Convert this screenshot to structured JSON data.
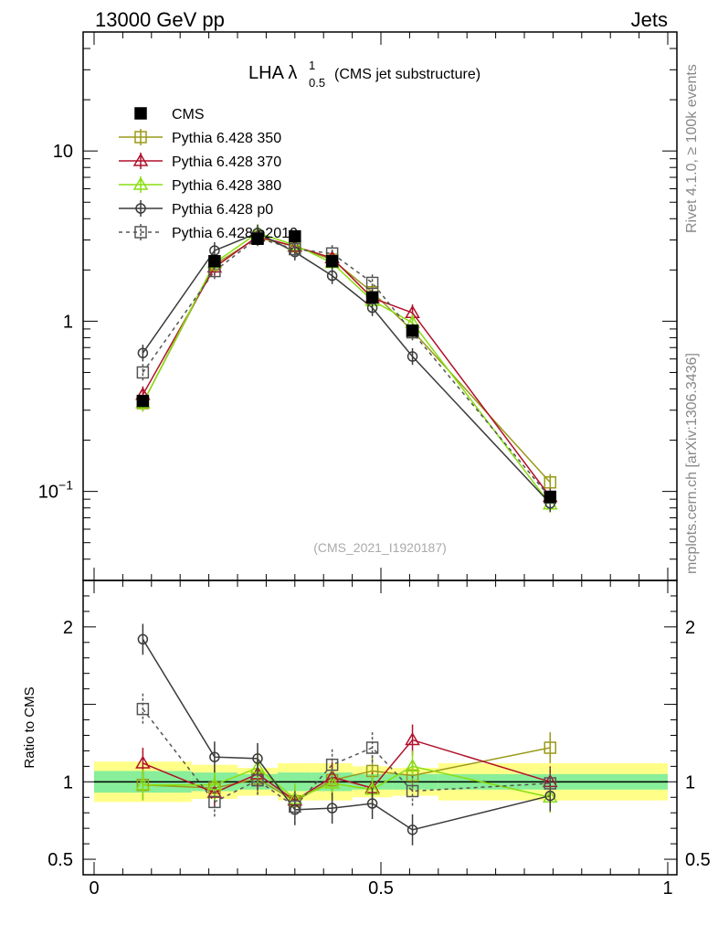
{
  "header": {
    "left": "13000 GeV pp",
    "right": "Jets"
  },
  "side_labels": {
    "rivet": "Rivet 4.1.0, ≥ 100k events",
    "mcplots": "mcplots.cern.ch [arXiv:1306.3436]"
  },
  "watermark": "(CMS_2021_I1920187)",
  "chart_data": {
    "type": "line",
    "title": {
      "main": "LHA λ",
      "sup": "1",
      "sub": "0.5",
      "suffix": "(CMS jet substructure)"
    },
    "ratio_ylabel": "Ratio to CMS",
    "xlim": [
      0,
      1
    ],
    "ylim": [
      0.03,
      50
    ],
    "ylog": true,
    "ratio_ylim": [
      0.4,
      2.3
    ],
    "x_ticks": [
      {
        "v": 0,
        "label": "0"
      },
      {
        "v": 0.5,
        "label": "0.5"
      },
      {
        "v": 1,
        "label": "1"
      }
    ],
    "y_ticks": [
      {
        "v": 0.1,
        "base": "10",
        "exp": "−1"
      },
      {
        "v": 1,
        "base": "1",
        "exp": ""
      },
      {
        "v": 10,
        "base": "10",
        "exp": ""
      }
    ],
    "ratio_ticks": [
      {
        "v": 0.5,
        "label": "0.5"
      },
      {
        "v": 1,
        "label": "1"
      },
      {
        "v": 2,
        "label": "2"
      }
    ],
    "x": [
      0.085,
      0.21,
      0.285,
      0.35,
      0.415,
      0.485,
      0.555,
      0.795
    ],
    "bin_edges": [
      0,
      0.17,
      0.25,
      0.32,
      0.38,
      0.45,
      0.52,
      0.6,
      1.0
    ],
    "band_inner": [
      0.07,
      0.06,
      0.05,
      0.06,
      0.06,
      0.05,
      0.05,
      0.05
    ],
    "band_outer": [
      0.13,
      0.11,
      0.09,
      0.12,
      0.12,
      0.1,
      0.09,
      0.12
    ],
    "cms": {
      "name": "CMS",
      "values": [
        0.34,
        2.25,
        3.05,
        3.15,
        2.25,
        1.38,
        0.88,
        0.093
      ]
    },
    "series": [
      {
        "name": "Pythia 6.428 350",
        "color": "#9a9a1a",
        "marker": "square-open",
        "dash": "",
        "values": [
          0.33,
          2.15,
          3.1,
          2.75,
          2.3,
          1.48,
          0.88,
          0.113
        ],
        "ratio": [
          0.98,
          0.96,
          1.02,
          0.875,
          1.01,
          1.07,
          1.04,
          1.22
        ]
      },
      {
        "name": "Pythia 6.428 370",
        "color": "#b0102a",
        "marker": "triangle-open",
        "dash": "",
        "values": [
          0.37,
          2.07,
          3.15,
          2.75,
          2.35,
          1.37,
          1.12,
          0.093
        ],
        "ratio": [
          1.12,
          0.93,
          1.05,
          0.88,
          1.03,
          0.96,
          1.27,
          1.0
        ]
      },
      {
        "name": "Pythia 6.428 380",
        "color": "#88dd11",
        "marker": "triangle-open",
        "dash": "",
        "values": [
          0.33,
          2.2,
          3.3,
          2.8,
          2.2,
          1.32,
          0.98,
          0.084
        ],
        "ratio": [
          0.98,
          0.98,
          1.09,
          0.89,
          0.99,
          0.95,
          1.1,
          0.9
        ]
      },
      {
        "name": "Pythia 6.428 p0",
        "color": "#3a3a3a",
        "marker": "circle-open",
        "dash": "",
        "values": [
          0.65,
          2.6,
          3.3,
          2.55,
          1.85,
          1.2,
          0.62,
          0.085
        ],
        "ratio": [
          1.92,
          1.16,
          1.15,
          0.82,
          0.83,
          0.86,
          0.69,
          0.91
        ]
      },
      {
        "name": "Pythia 6.428 p2010",
        "color": "#555555",
        "marker": "square-open",
        "dash": "4,4",
        "values": [
          0.5,
          1.97,
          3.08,
          2.65,
          2.5,
          1.68,
          0.86,
          0.092
        ],
        "ratio": [
          1.47,
          0.87,
          1.01,
          0.84,
          1.11,
          1.22,
          0.94,
          0.99
        ]
      }
    ]
  }
}
